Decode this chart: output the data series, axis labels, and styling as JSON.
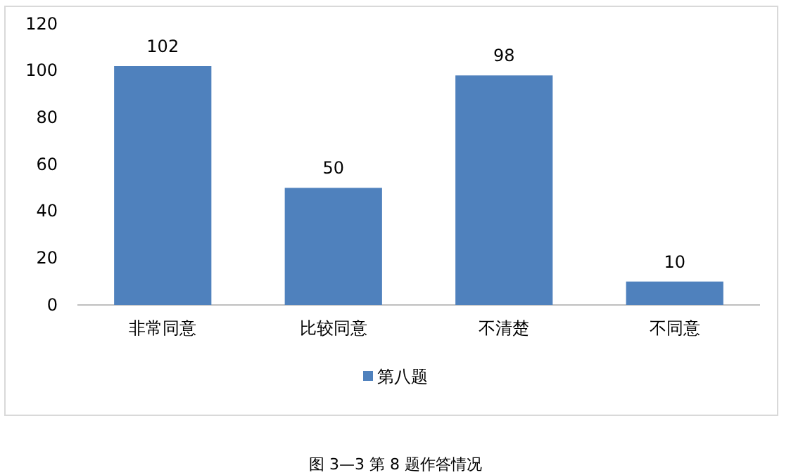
{
  "chart_data": {
    "type": "bar",
    "categories": [
      "非常同意",
      "比较同意",
      "不清楚",
      "不同意"
    ],
    "series": [
      {
        "name": "第八题",
        "color": "#4f81bd",
        "values": [
          102,
          50,
          98,
          10
        ]
      }
    ],
    "ylim": [
      0,
      120
    ],
    "yticks": [
      0,
      20,
      40,
      60,
      80,
      100,
      120
    ],
    "grid": false,
    "legend": "bottom",
    "data_labels": true,
    "annotations": [
      "图 3—3 第 8 题作答情况"
    ]
  }
}
